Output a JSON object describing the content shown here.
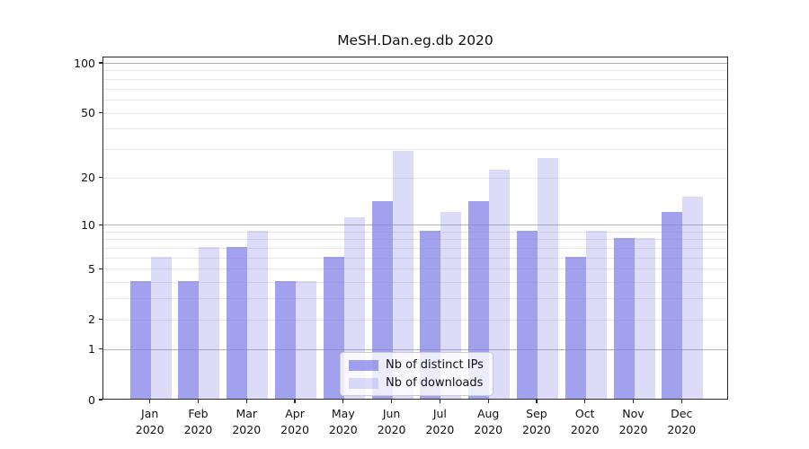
{
  "chart_data": {
    "type": "bar",
    "title": "MeSH.Dan.eg.db 2020",
    "categories": [
      "Jan",
      "Feb",
      "Mar",
      "Apr",
      "May",
      "Jun",
      "Jul",
      "Aug",
      "Sep",
      "Oct",
      "Nov",
      "Dec"
    ],
    "x_tick_year": "2020",
    "series": [
      {
        "name": "Nb of distinct IPs",
        "key": "distinct-ips",
        "color": "rgba(125,125,232,0.72)",
        "values": [
          4,
          4,
          7,
          4,
          6,
          14,
          9,
          14,
          9,
          6,
          8,
          12
        ]
      },
      {
        "name": "Nb of downloads",
        "key": "downloads",
        "color": "rgba(125,125,232,0.27)",
        "values": [
          6,
          7,
          9,
          4,
          11,
          29,
          12,
          22,
          26,
          9,
          8,
          15
        ]
      }
    ],
    "xlabel": "",
    "ylabel": "",
    "yscale": "log1p",
    "ylim": [
      0,
      110
    ],
    "yticks": [
      0,
      1,
      2,
      5,
      10,
      20,
      50,
      100
    ],
    "ygrid_major": [
      1,
      10,
      100
    ],
    "ygrid_minor": [
      2,
      3,
      4,
      5,
      6,
      7,
      8,
      9,
      20,
      30,
      40,
      50,
      60,
      70,
      80,
      90
    ],
    "grid": true,
    "legend_position": "lower center"
  },
  "colors": {
    "bar_distinct_ips": "rgba(125,125,232,0.72)",
    "bar_downloads": "rgba(125,125,232,0.27)",
    "grid_major": "#b3b3b3",
    "grid_minor": "#e7e7e7",
    "axis_spine": "#2b2b2b",
    "background": "#ffffff"
  }
}
